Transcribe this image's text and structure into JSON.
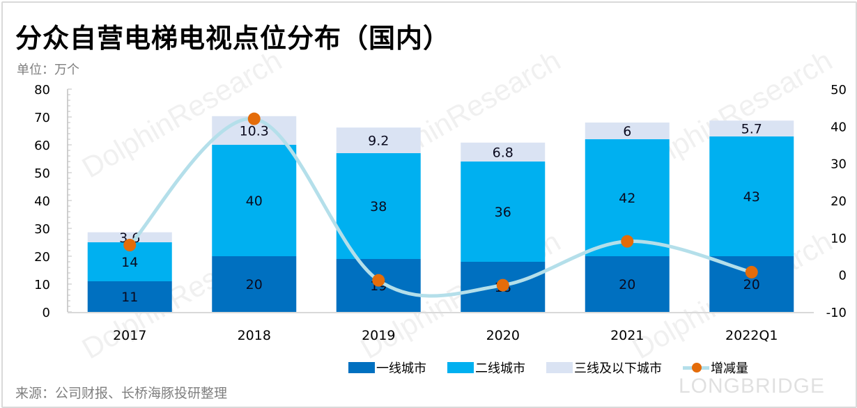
{
  "title": "分众自营电梯电视点位分布（国内）",
  "unit": "单位：万个",
  "source": "来源：公司财报、长桥海豚投研整理",
  "watermarks": {
    "text": "DolphinResearch",
    "small_text": "LONGBRIDGE",
    "logo": "LONGBRIDGE"
  },
  "colors": {
    "tier1": "#0070c0",
    "tier2": "#00b0f0",
    "tier3": "#dae3f3",
    "line": "#b4dfea",
    "marker": "#e46c0a"
  },
  "chart_data": {
    "type": "bar",
    "stacked": true,
    "title": "分众自营电梯电视点位分布（国内）",
    "ylabel": "单位：万个",
    "categories": [
      "2017",
      "2018",
      "2019",
      "2020",
      "2021",
      "2022Q1"
    ],
    "series": [
      {
        "name": "一线城市",
        "type": "bar",
        "axis": "left",
        "values": [
          11,
          20,
          19,
          18,
          20,
          20
        ]
      },
      {
        "name": "二线城市",
        "type": "bar",
        "axis": "left",
        "values": [
          14,
          40,
          38,
          36,
          42,
          43
        ]
      },
      {
        "name": "三线及以下城市",
        "type": "bar",
        "axis": "left",
        "values": [
          3.6,
          10.3,
          9.2,
          6.8,
          6,
          5.7
        ]
      },
      {
        "name": "增减量",
        "type": "line",
        "axis": "right",
        "smooth": true,
        "values": [
          8,
          42,
          -1.5,
          -2.8,
          9,
          0.7
        ]
      }
    ],
    "y_left": {
      "min": 0,
      "max": 80,
      "step": 10,
      "ticks": [
        "0",
        "10",
        "20",
        "30",
        "40",
        "50",
        "60",
        "70",
        "80"
      ]
    },
    "y_right": {
      "min": -10,
      "max": 50,
      "step": 10,
      "ticks": [
        "-10",
        "0",
        "10",
        "20",
        "30",
        "40",
        "50"
      ]
    },
    "grid": false,
    "legend": {
      "position": "bottom-right",
      "items": [
        "一线城市",
        "二线城市",
        "三线及以下城市",
        "增减量"
      ]
    }
  }
}
